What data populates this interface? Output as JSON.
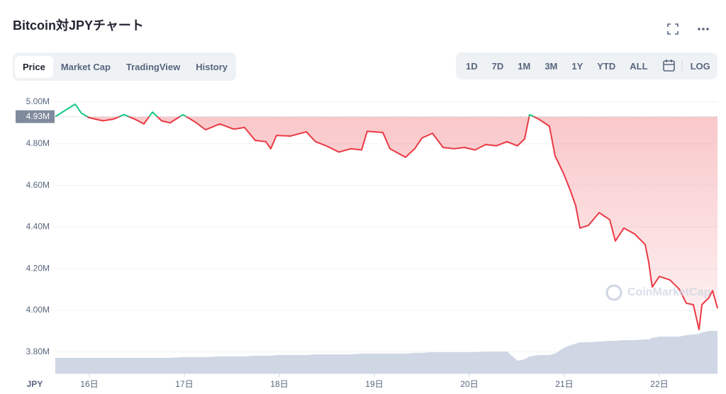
{
  "header": {
    "title": "Bitcoin対JPYチャート"
  },
  "tabs": [
    "Price",
    "Market Cap",
    "TradingView",
    "History"
  ],
  "active_tab": "Price",
  "ranges": [
    "1D",
    "7D",
    "1M",
    "3M",
    "1Y",
    "YTD",
    "ALL"
  ],
  "log_button": "LOG",
  "chart_data": {
    "type": "line",
    "currency_label": "JPY",
    "watermark": "CoinMarketCap",
    "x": [
      15.642,
      15.731,
      15.851,
      15.918,
      16.0,
      16.142,
      16.254,
      16.366,
      16.478,
      16.575,
      16.664,
      16.761,
      16.851,
      16.985,
      17.112,
      17.224,
      17.373,
      17.522,
      17.634,
      17.746,
      17.858,
      17.91,
      17.97,
      18.119,
      18.284,
      18.381,
      18.493,
      18.627,
      18.754,
      18.866,
      18.925,
      19.09,
      19.164,
      19.328,
      19.425,
      19.5,
      19.612,
      19.724,
      19.836,
      19.948,
      20.06,
      20.172,
      20.284,
      20.396,
      20.507,
      20.582,
      20.634,
      20.731,
      20.843,
      20.903,
      20.993,
      21.067,
      21.119,
      21.164,
      21.254,
      21.366,
      21.478,
      21.537,
      21.627,
      21.739,
      21.851,
      21.888,
      21.925,
      22.0,
      22.112,
      22.209,
      22.284,
      22.358,
      22.418,
      22.448,
      22.522,
      22.56,
      22.612
    ],
    "series": [
      {
        "name": "Price",
        "color_up": "#16c784",
        "color_down": "#ea3943",
        "values": [
          4.93,
          4.956,
          4.99,
          4.946,
          4.925,
          4.91,
          4.918,
          4.94,
          4.918,
          4.895,
          4.952,
          4.91,
          4.9,
          4.94,
          4.905,
          4.867,
          4.895,
          4.87,
          4.878,
          4.816,
          4.81,
          4.776,
          4.84,
          4.837,
          4.857,
          4.81,
          4.79,
          4.76,
          4.776,
          4.77,
          4.86,
          4.854,
          4.776,
          4.735,
          4.776,
          4.827,
          4.85,
          4.782,
          4.776,
          4.782,
          4.77,
          4.796,
          4.79,
          4.81,
          4.79,
          4.823,
          4.94,
          4.918,
          4.884,
          4.741,
          4.656,
          4.571,
          4.503,
          4.395,
          4.408,
          4.469,
          4.435,
          4.333,
          4.395,
          4.367,
          4.316,
          4.231,
          4.112,
          4.163,
          4.146,
          4.102,
          4.034,
          4.027,
          3.908,
          4.027,
          4.061,
          4.095,
          4.01
        ]
      },
      {
        "name": "Volume",
        "color": "#cfd6e4",
        "axis": "y2",
        "values": [
          22,
          22,
          22,
          22,
          22,
          22,
          22,
          22,
          22,
          22,
          22,
          22,
          22,
          23,
          23,
          23,
          24,
          24,
          24,
          25,
          25,
          25,
          26,
          26,
          26,
          27,
          27,
          27,
          27,
          28,
          28,
          28,
          28,
          28,
          29,
          29,
          30,
          30,
          30,
          30,
          30,
          31,
          31,
          31,
          18,
          20,
          24,
          26,
          26,
          28,
          36,
          40,
          42,
          44,
          44,
          45,
          46,
          46,
          47,
          47,
          48,
          48,
          50,
          52,
          52,
          52,
          54,
          55,
          56,
          58,
          60,
          60,
          60
        ]
      }
    ],
    "reference": {
      "value": 4.93,
      "label": "4.93M"
    },
    "xlim": [
      15.642,
      22.612
    ],
    "xticks": [
      {
        "value": 16,
        "label": "16日"
      },
      {
        "value": 17,
        "label": "17日"
      },
      {
        "value": 18,
        "label": "18日"
      },
      {
        "value": 19,
        "label": "19日"
      },
      {
        "value": 20,
        "label": "20日"
      },
      {
        "value": 21,
        "label": "21日"
      },
      {
        "value": 22,
        "label": "22日"
      }
    ],
    "ylim": [
      3.697,
      5.058
    ],
    "yticks": [
      {
        "value": 3.8,
        "label": "3.80M"
      },
      {
        "value": 4.0,
        "label": "4.00M"
      },
      {
        "value": 4.2,
        "label": "4.20M"
      },
      {
        "value": 4.4,
        "label": "4.40M"
      },
      {
        "value": 4.6,
        "label": "4.60M"
      },
      {
        "value": 4.8,
        "label": "4.80M"
      },
      {
        "value": 5.0,
        "label": "5.00M"
      }
    ],
    "y2lim": [
      0,
      400
    ],
    "grid": true
  }
}
